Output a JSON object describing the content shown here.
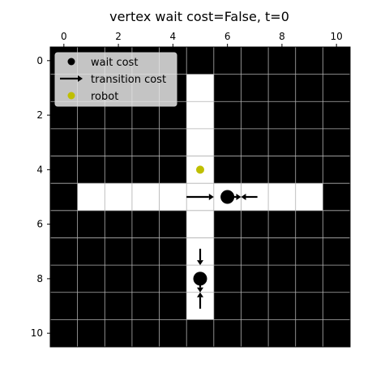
{
  "chart_data": {
    "type": "heatmap",
    "title": "vertex wait cost=False, t=0",
    "xlabel": "",
    "ylabel": "",
    "xlim": [
      -0.5,
      10.5
    ],
    "ylim": [
      10.5,
      -0.5
    ],
    "x_axis_position": "top",
    "xticks": [
      0,
      2,
      4,
      6,
      8,
      10
    ],
    "yticks": [
      0,
      2,
      4,
      6,
      8,
      10
    ],
    "xtick_labels": [
      "0",
      "2",
      "4",
      "6",
      "8",
      "10"
    ],
    "ytick_labels": [
      "0",
      "2",
      "4",
      "6",
      "8",
      "10"
    ],
    "grid": true,
    "legend_position": "top-left",
    "colors": {
      "obstacle": "#000000",
      "free": "#ffffff",
      "grid": "#b0b0b0",
      "wait_cost": "#000000",
      "transition_cost": "#000000",
      "robot": "#bfbf00"
    },
    "grid_size": [
      11,
      11
    ],
    "free_cells": [
      [
        5,
        1
      ],
      [
        5,
        2
      ],
      [
        5,
        3
      ],
      [
        5,
        4
      ],
      [
        1,
        5
      ],
      [
        2,
        5
      ],
      [
        3,
        5
      ],
      [
        4,
        5
      ],
      [
        5,
        5
      ],
      [
        6,
        5
      ],
      [
        7,
        5
      ],
      [
        8,
        5
      ],
      [
        9,
        5
      ],
      [
        5,
        6
      ],
      [
        5,
        7
      ],
      [
        5,
        8
      ],
      [
        5,
        9
      ]
    ],
    "legend": [
      {
        "label": "wait cost",
        "marker": "circle"
      },
      {
        "label": "transition cost",
        "marker": "arrow"
      },
      {
        "label": "robot",
        "marker": "robot-dot"
      }
    ],
    "wait_cost_points": [
      {
        "x": 6,
        "y": 5,
        "size": "large"
      },
      {
        "x": 5,
        "y": 8,
        "size": "large"
      }
    ],
    "transition_arrows": [
      {
        "from": [
          4.5,
          5
        ],
        "to": [
          5.5,
          5
        ]
      },
      {
        "from": [
          7.1,
          5
        ],
        "to": [
          6.5,
          5
        ]
      },
      {
        "from": [
          6.2,
          5
        ],
        "to": [
          6.5,
          5
        ]
      },
      {
        "from": [
          5,
          6.9
        ],
        "to": [
          5,
          7.5
        ]
      },
      {
        "from": [
          5,
          8.05
        ],
        "to": [
          5,
          8.5
        ]
      },
      {
        "from": [
          5,
          9.1
        ],
        "to": [
          5,
          8.5
        ]
      }
    ],
    "robot": {
      "x": 5,
      "y": 4
    }
  }
}
